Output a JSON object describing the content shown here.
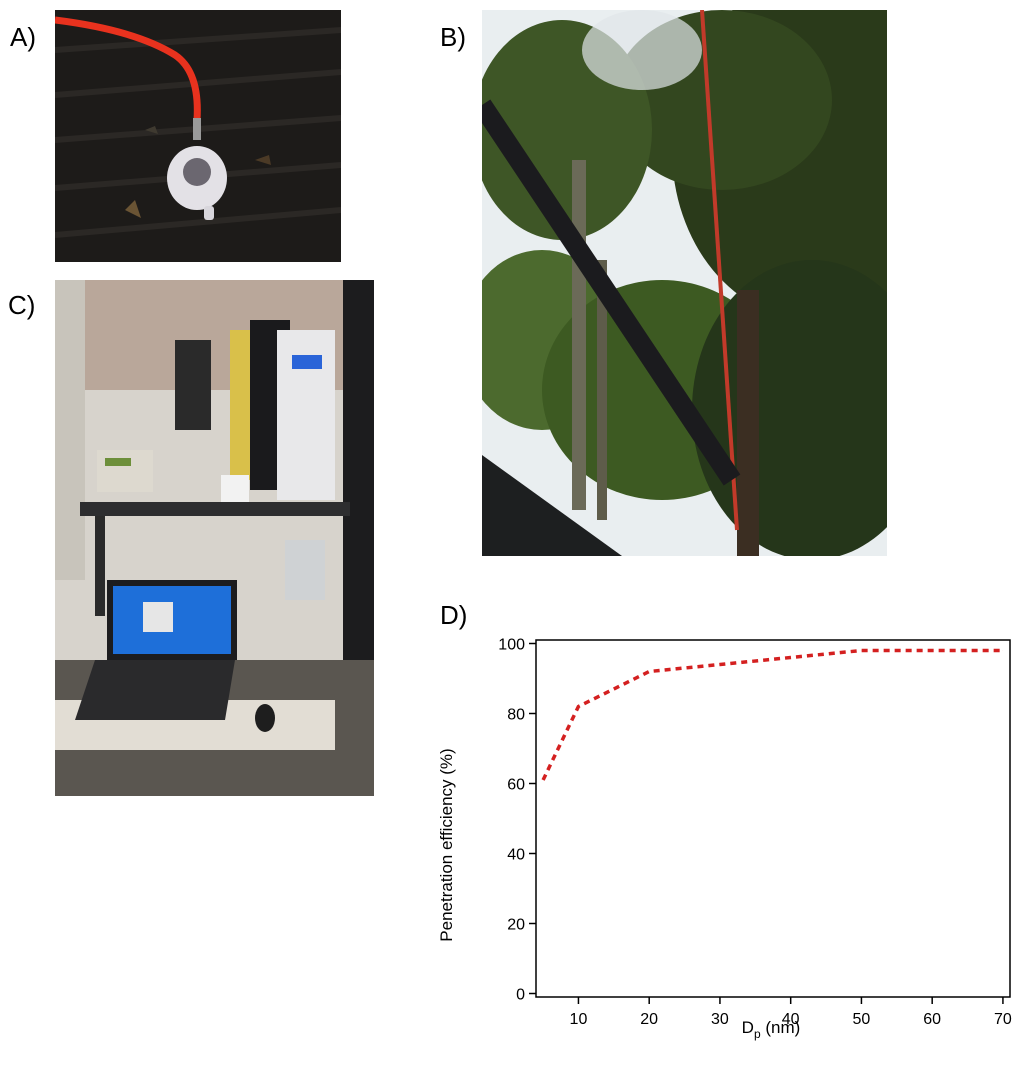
{
  "panels": {
    "a": {
      "label": "A)"
    },
    "b": {
      "label": "B)"
    },
    "c": {
      "label": "C)"
    },
    "d": {
      "label": "D)"
    }
  },
  "colors": {
    "curve": "#d42020",
    "hose": "#e8321e",
    "foliage_dark": "#1f2a12",
    "sky": "#e9eef0",
    "screen": "#1e6fd9",
    "instrument": "#e8e8ea"
  },
  "photos": {
    "a_icon": "funnel-inlet-photo",
    "b_icon": "forest-canopy-inlet-photo",
    "c_icon": "instrument-bench-photo"
  },
  "chart_data": {
    "type": "line",
    "title": "",
    "xlabel_main": "D",
    "xlabel_sub": "p",
    "xlabel_unit": " (nm)",
    "ylabel": "Penetration efficiency (%)",
    "xlim": [
      4,
      71
    ],
    "ylim": [
      -1,
      101
    ],
    "xticks": [
      10,
      20,
      30,
      40,
      50,
      60,
      70
    ],
    "yticks": [
      0,
      20,
      40,
      60,
      80,
      100
    ],
    "line_style": "dashed",
    "grid": false,
    "x": [
      5,
      10,
      20,
      30,
      40,
      50,
      60,
      70
    ],
    "y": [
      61,
      82,
      92,
      94,
      96,
      98,
      98,
      98
    ]
  }
}
